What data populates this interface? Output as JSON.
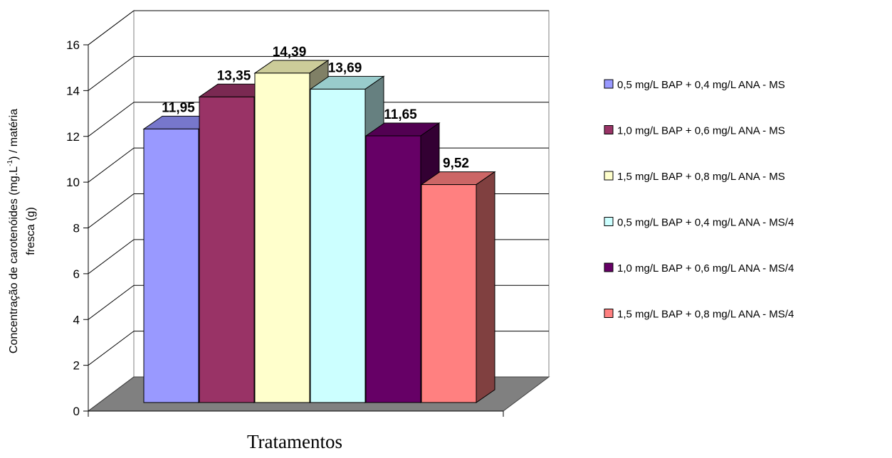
{
  "chart_data": {
    "type": "bar",
    "title": "",
    "xlabel": "Tratamentos",
    "ylabel_line1": "Concentração de carotenóides (mg.L",
    "ylabel_sup": "-1",
    "ylabel_line1_end": ") / matéria",
    "ylabel_line2": "fresca (g)",
    "ylim": [
      0,
      16
    ],
    "yticks": [
      0,
      2,
      4,
      6,
      8,
      10,
      12,
      14,
      16
    ],
    "grid": true,
    "legend_position": "right",
    "series": [
      {
        "name": "0,5 mg/L BAP + 0,4 mg/L ANA  - MS",
        "value": 11.95,
        "label": "11,95",
        "color": "#9999FF",
        "side": "#666699",
        "top": "#7777CC"
      },
      {
        "name": "1,0 mg/L BAP + 0,6 mg/L ANA - MS",
        "value": 13.35,
        "label": "13,35",
        "color": "#993366",
        "side": "#662244",
        "top": "#7A2952"
      },
      {
        "name": "1,5 mg/L BAP + 0,8 mg/L ANA  - MS",
        "value": 14.39,
        "label": "14,39",
        "color": "#FFFFCC",
        "side": "#808066",
        "top": "#CCCC99"
      },
      {
        "name": "0,5 mg/L BAP + 0,4 mg/L ANA - MS/4",
        "value": 13.69,
        "label": "13,69",
        "color": "#CCFFFF",
        "side": "#668080",
        "top": "#99CCCC"
      },
      {
        "name": "1,0 mg/L BAP + 0,6 mg/L ANA - MS/4",
        "value": 11.65,
        "label": "11,65",
        "color": "#660066",
        "side": "#330033",
        "top": "#520052"
      },
      {
        "name": "1,5 mg/L BAP + 0,8 mg/L ANA  - MS/4",
        "value": 9.52,
        "label": "9,52",
        "color": "#FF8080",
        "side": "#804040",
        "top": "#CC6666"
      }
    ]
  }
}
